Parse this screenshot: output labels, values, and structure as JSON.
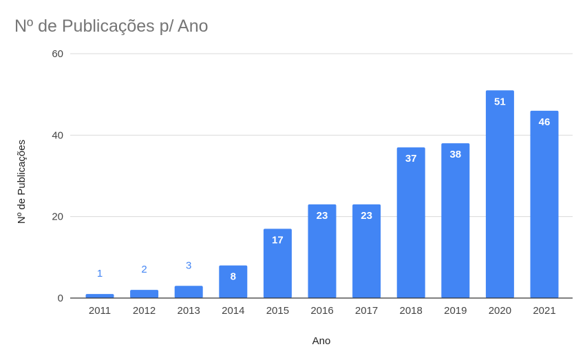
{
  "chart_data": {
    "type": "bar",
    "title": "Nº de Publicações p/ Ano",
    "xlabel": "Ano",
    "ylabel": "Nº de Publicações",
    "categories": [
      "2011",
      "2012",
      "2013",
      "2014",
      "2015",
      "2016",
      "2017",
      "2018",
      "2019",
      "2020",
      "2021"
    ],
    "values": [
      1,
      2,
      3,
      8,
      17,
      23,
      23,
      37,
      38,
      51,
      46
    ],
    "data_labels": [
      "1",
      "2",
      "3",
      "8",
      "17",
      "23",
      "23",
      "37",
      "38",
      "51",
      "46"
    ],
    "ylim": [
      0,
      60
    ],
    "yticks": [
      0,
      20,
      40,
      60
    ],
    "ytick_labels": [
      "0",
      "20",
      "40",
      "60"
    ],
    "grid": true,
    "legend": "none",
    "colors": {
      "bar": "#4285f4",
      "label_outside": "#4285f4",
      "label_inside": "#ffffff",
      "grid": "#d9d9d9",
      "baseline": "#333333"
    }
  }
}
